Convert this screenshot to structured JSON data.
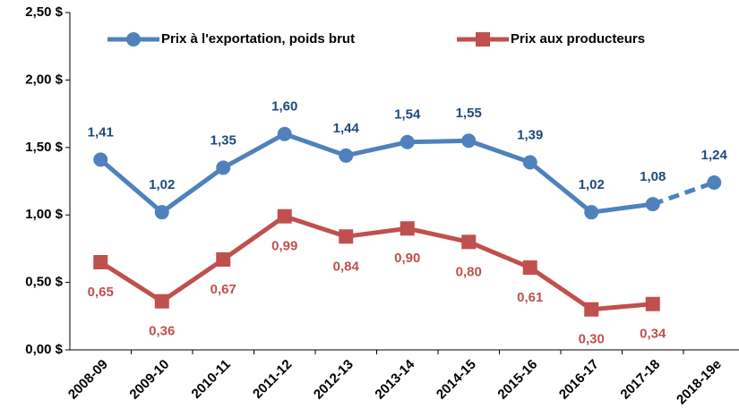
{
  "chart_data": {
    "type": "line",
    "categories": [
      "2008-09",
      "2009-10",
      "2010-11",
      "2011-12",
      "2012-13",
      "2013-14",
      "2014-15",
      "2015-16",
      "2016-17",
      "2017-18",
      "2018-19e"
    ],
    "series": [
      {
        "name": "Prix à l'exportation, poids brut",
        "color": "#4f81bd",
        "label_color": "#1f497d",
        "values": [
          1.41,
          1.02,
          1.35,
          1.6,
          1.44,
          1.54,
          1.55,
          1.39,
          1.02,
          1.08,
          1.24
        ],
        "value_labels": [
          "1,41",
          "1,02",
          "1,35",
          "1,60",
          "1,44",
          "1,54",
          "1,55",
          "1,39",
          "1,02",
          "1,08",
          "1,24"
        ],
        "marker": "circle",
        "dashed_last_segment": true,
        "label_position": "above"
      },
      {
        "name": "Prix aux producteurs",
        "color": "#c0504d",
        "label_color": "#c0504d",
        "values": [
          0.65,
          0.36,
          0.67,
          0.99,
          0.84,
          0.9,
          0.8,
          0.61,
          0.3,
          0.34,
          null
        ],
        "value_labels": [
          "0,65",
          "0,36",
          "0,67",
          "0,99",
          "0,84",
          "0,90",
          "0,80",
          "0,61",
          "0,30",
          "0,34",
          null
        ],
        "marker": "square",
        "dashed_last_segment": false,
        "label_position": "below"
      }
    ],
    "ylim": [
      0,
      2.5
    ],
    "yticks": [
      {
        "value": 0,
        "label": "0,00 $"
      },
      {
        "value": 0.5,
        "label": "0,50 $"
      },
      {
        "value": 1,
        "label": "1,00 $"
      },
      {
        "value": 1.5,
        "label": "1,50 $"
      },
      {
        "value": 2,
        "label": "2,00 $"
      },
      {
        "value": 2.5,
        "label": "2,50 $"
      }
    ],
    "grid": false,
    "legend": "top"
  }
}
